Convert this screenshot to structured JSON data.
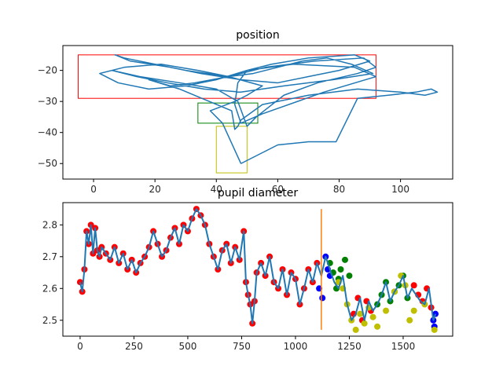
{
  "chart_data": [
    {
      "type": "line",
      "title": "position",
      "xlim": [
        -10,
        117
      ],
      "ylim": [
        -55,
        -12
      ],
      "xticks": [
        0,
        20,
        40,
        60,
        80,
        100
      ],
      "yticks": [
        -20,
        -30,
        -40,
        -50
      ],
      "xtick_labels": [
        "0",
        "20",
        "40",
        "60",
        "80",
        "100"
      ],
      "ytick_labels": [
        "−20",
        "−30",
        "−40",
        "−50"
      ],
      "line_color": "#1f77b4",
      "series": [
        {
          "x": [
            48,
            42,
            38,
            46,
            50,
            55,
            44,
            30,
            20,
            10,
            7,
            12,
            25,
            35,
            48,
            60,
            70,
            80,
            90,
            85,
            70,
            58,
            50,
            47,
            46,
            48,
            55,
            75,
            92,
            85,
            65,
            50,
            40,
            30,
            18,
            8,
            2,
            10,
            22,
            34,
            44,
            52,
            60,
            68,
            76,
            84,
            91,
            78,
            62,
            48,
            36,
            24,
            14,
            6,
            15,
            28,
            40,
            47,
            50,
            53,
            62,
            73,
            86,
            92,
            88,
            72,
            56,
            44,
            33,
            25,
            18,
            28,
            45,
            46,
            47,
            48,
            55,
            70,
            86,
            100,
            108,
            112,
            110,
            105,
            96,
            86,
            79,
            70,
            60,
            48
          ],
          "y": [
            -50,
            -37,
            -33,
            -30,
            -28,
            -25,
            -22,
            -20,
            -18,
            -16,
            -15,
            -17,
            -19,
            -21,
            -23,
            -24,
            -22,
            -20,
            -17,
            -15,
            -16,
            -18,
            -20,
            -24,
            -31,
            -37,
            -34,
            -27,
            -22,
            -19,
            -18,
            -20,
            -23,
            -25,
            -26,
            -24,
            -21,
            -19,
            -18,
            -20,
            -22,
            -21,
            -19,
            -17,
            -16,
            -18,
            -21,
            -23,
            -25,
            -27,
            -26,
            -24,
            -22,
            -20,
            -22,
            -24,
            -26,
            -30,
            -38,
            -35,
            -28,
            -24,
            -21,
            -19,
            -16,
            -17,
            -19,
            -22,
            -24,
            -25,
            -23,
            -26,
            -33,
            -39,
            -38,
            -36,
            -31,
            -28,
            -26,
            -27,
            -28,
            -27,
            -26,
            -27,
            -28,
            -29,
            -43,
            -43,
            -44,
            -50
          ]
        }
      ],
      "rects": [
        {
          "x0": -5,
          "x1": 92,
          "y0": -29,
          "y1": -15,
          "color": "#ff0000"
        },
        {
          "x0": 34,
          "x1": 53.5,
          "y0": -37,
          "y1": -30.5,
          "color": "#008000"
        },
        {
          "x0": 40,
          "x1": 50,
          "y0": -53,
          "y1": -38,
          "color": "#bfbf00"
        }
      ]
    },
    {
      "type": "scatter",
      "title": "pupil diameter",
      "xlim": [
        -80,
        1730
      ],
      "ylim": [
        2.45,
        2.87
      ],
      "xticks": [
        0,
        250,
        500,
        750,
        1000,
        1250,
        1500
      ],
      "yticks": [
        2.5,
        2.6,
        2.7,
        2.8
      ],
      "xtick_labels": [
        "0",
        "250",
        "500",
        "750",
        "1000",
        "1250",
        "1500"
      ],
      "ytick_labels": [
        "2.5",
        "2.6",
        "2.7",
        "2.8"
      ],
      "line_color": "#1f77b4",
      "vline": {
        "x": 1120,
        "y0": 2.47,
        "y1": 2.85,
        "color": "#ff7f0e"
      },
      "series": [
        {
          "name": "red",
          "color": "#ff0000",
          "x": [
            0,
            10,
            20,
            30,
            40,
            50,
            60,
            70,
            80,
            90,
            100,
            120,
            140,
            160,
            180,
            200,
            220,
            240,
            260,
            280,
            300,
            320,
            340,
            360,
            380,
            400,
            420,
            440,
            460,
            480,
            500,
            520,
            540,
            560,
            580,
            600,
            620,
            640,
            660,
            680,
            700,
            720,
            740,
            760,
            770,
            780,
            790,
            800,
            810,
            820,
            840,
            860,
            880,
            900,
            920,
            940,
            960,
            980,
            1000,
            1020,
            1040,
            1060,
            1080,
            1100,
            1270,
            1290,
            1310,
            1330,
            1350,
            1550,
            1570,
            1590,
            1610,
            1630
          ],
          "y": [
            2.62,
            2.59,
            2.66,
            2.78,
            2.74,
            2.8,
            2.71,
            2.79,
            2.72,
            2.7,
            2.73,
            2.71,
            2.69,
            2.73,
            2.68,
            2.71,
            2.66,
            2.69,
            2.65,
            2.68,
            2.7,
            2.73,
            2.78,
            2.74,
            2.7,
            2.72,
            2.76,
            2.79,
            2.74,
            2.8,
            2.78,
            2.82,
            2.85,
            2.83,
            2.8,
            2.74,
            2.7,
            2.66,
            2.72,
            2.74,
            2.68,
            2.73,
            2.69,
            2.78,
            2.62,
            2.58,
            2.55,
            2.49,
            2.56,
            2.65,
            2.68,
            2.64,
            2.7,
            2.62,
            2.6,
            2.66,
            2.58,
            2.65,
            2.63,
            2.55,
            2.6,
            2.66,
            2.62,
            2.68,
            2.52,
            2.57,
            2.5,
            2.56,
            2.53,
            2.61,
            2.58,
            2.56,
            2.6,
            2.54
          ]
        },
        {
          "name": "blue",
          "color": "#0000ff",
          "x": [
            1110,
            1125,
            1140,
            1150,
            1160,
            1640,
            1645,
            1650
          ],
          "y": [
            2.6,
            2.57,
            2.7,
            2.66,
            2.64,
            2.5,
            2.48,
            2.52
          ]
        },
        {
          "name": "green",
          "color": "#008000",
          "x": [
            1160,
            1175,
            1190,
            1200,
            1210,
            1230,
            1250,
            1380,
            1400,
            1420,
            1440,
            1460,
            1480,
            1500,
            1520
          ],
          "y": [
            2.68,
            2.65,
            2.6,
            2.63,
            2.66,
            2.69,
            2.64,
            2.55,
            2.58,
            2.62,
            2.56,
            2.59,
            2.61,
            2.64,
            2.57
          ]
        },
        {
          "name": "yellow",
          "color": "#bfbf00",
          "x": [
            1200,
            1220,
            1240,
            1260,
            1280,
            1300,
            1320,
            1340,
            1360,
            1380,
            1420,
            1460,
            1490,
            1510,
            1530,
            1550,
            1600,
            1645
          ],
          "y": [
            2.62,
            2.6,
            2.55,
            2.5,
            2.47,
            2.52,
            2.49,
            2.54,
            2.51,
            2.48,
            2.53,
            2.59,
            2.64,
            2.61,
            2.5,
            2.53,
            2.55,
            2.47
          ]
        }
      ],
      "line": {
        "x": [
          0,
          10,
          20,
          30,
          40,
          50,
          60,
          70,
          80,
          90,
          100,
          120,
          140,
          160,
          180,
          200,
          220,
          240,
          260,
          280,
          300,
          320,
          340,
          360,
          380,
          400,
          420,
          440,
          460,
          480,
          500,
          520,
          540,
          560,
          580,
          600,
          620,
          640,
          660,
          680,
          700,
          720,
          740,
          760,
          770,
          780,
          790,
          800,
          810,
          820,
          840,
          860,
          880,
          900,
          920,
          940,
          960,
          980,
          1000,
          1020,
          1040,
          1060,
          1080,
          1100,
          1120,
          1140,
          1160,
          1180,
          1200,
          1220,
          1240,
          1260,
          1280,
          1300,
          1320,
          1340,
          1360,
          1380,
          1400,
          1420,
          1440,
          1460,
          1480,
          1500,
          1520,
          1540,
          1560,
          1580,
          1600,
          1620,
          1640,
          1650
        ],
        "y": [
          2.62,
          2.59,
          2.66,
          2.78,
          2.74,
          2.8,
          2.71,
          2.79,
          2.72,
          2.7,
          2.73,
          2.71,
          2.69,
          2.73,
          2.68,
          2.71,
          2.66,
          2.69,
          2.65,
          2.68,
          2.7,
          2.73,
          2.78,
          2.74,
          2.7,
          2.72,
          2.76,
          2.79,
          2.74,
          2.8,
          2.78,
          2.82,
          2.85,
          2.83,
          2.8,
          2.74,
          2.7,
          2.66,
          2.72,
          2.74,
          2.68,
          2.73,
          2.69,
          2.78,
          2.62,
          2.58,
          2.55,
          2.49,
          2.56,
          2.65,
          2.68,
          2.64,
          2.7,
          2.62,
          2.6,
          2.66,
          2.58,
          2.65,
          2.63,
          2.55,
          2.6,
          2.66,
          2.62,
          2.68,
          2.64,
          2.7,
          2.66,
          2.62,
          2.6,
          2.64,
          2.55,
          2.5,
          2.52,
          2.57,
          2.5,
          2.56,
          2.53,
          2.55,
          2.58,
          2.62,
          2.56,
          2.59,
          2.61,
          2.64,
          2.57,
          2.6,
          2.58,
          2.56,
          2.55,
          2.6,
          2.5,
          2.52
        ]
      }
    }
  ]
}
